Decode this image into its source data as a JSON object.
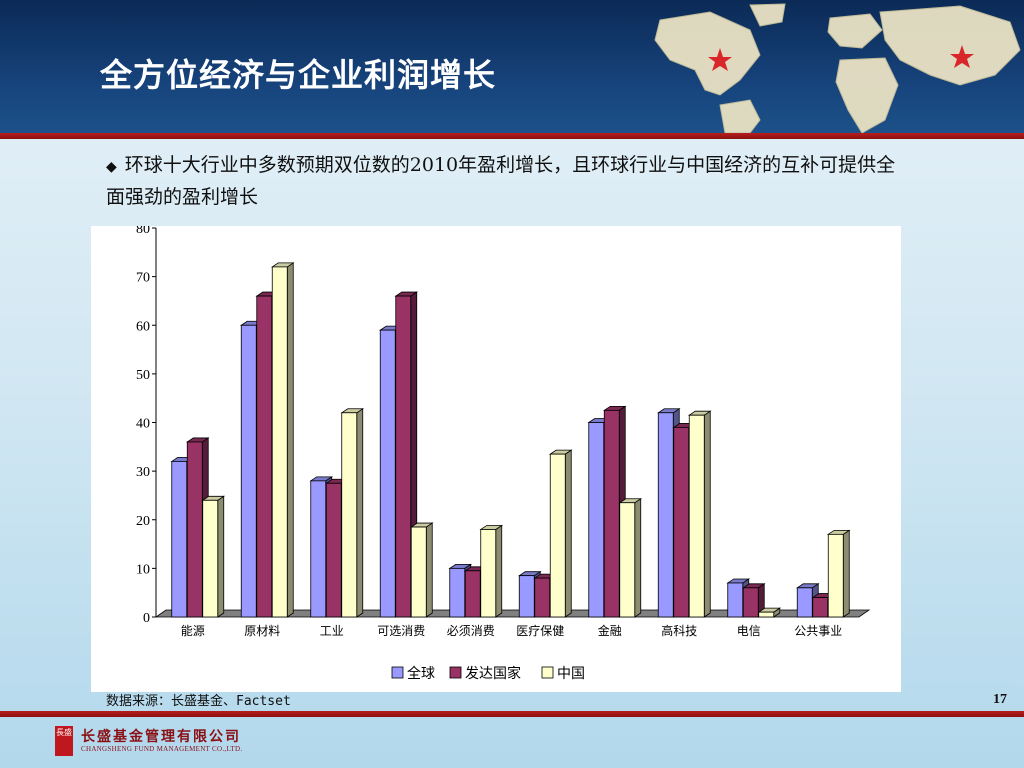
{
  "header": {
    "title": "全方位经济与企业利润增长"
  },
  "bullet": {
    "marker": "◆",
    "text": "环球十大行业中多数预期双位数的2010年盈利增长，且环球行业与中国经济的互补可提供全面强劲的盈利增长"
  },
  "footer": {
    "source": "数据来源：长盛基金、Factset",
    "page_number": "17",
    "logo_mark": "長盛",
    "logo_name": "长盛基金管理有限公司",
    "logo_en": "CHANGSHENG FUND MANAGEMENT CO.,LTD."
  },
  "colors": {
    "header_bg": "#0b2a56",
    "rule_red": "#b81d1d",
    "logo_red": "#c0161d"
  },
  "chart_data": {
    "type": "bar",
    "title": "",
    "xlabel": "",
    "ylabel": "",
    "ylim": [
      0,
      80
    ],
    "yticks": [
      0,
      10,
      20,
      30,
      40,
      50,
      60,
      70,
      80
    ],
    "grid": false,
    "three_d": true,
    "legend_position": "bottom",
    "categories": [
      "能源",
      "原材料",
      "工业",
      "可选消费",
      "必须消费",
      "医疗保健",
      "金融",
      "高科技",
      "电信",
      "公共事业"
    ],
    "series": [
      {
        "name": "全球",
        "color": "#9999ff",
        "values": [
          32,
          60,
          28,
          59,
          10,
          8.5,
          40,
          42,
          7,
          6
        ]
      },
      {
        "name": "发达国家",
        "color": "#993366",
        "values": [
          36,
          66,
          27.5,
          66,
          9.5,
          8,
          42.5,
          39,
          6,
          4
        ]
      },
      {
        "name": "中国",
        "color": "#ffffcc",
        "values": [
          24,
          72,
          42,
          18.5,
          18,
          33.5,
          23.5,
          41.5,
          1,
          17
        ]
      }
    ]
  }
}
